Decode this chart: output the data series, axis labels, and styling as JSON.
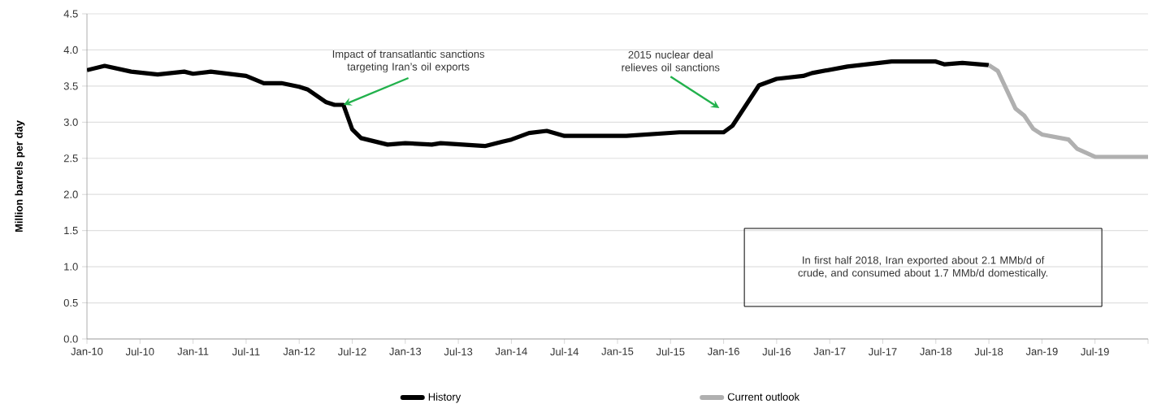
{
  "chart_data": {
    "type": "line",
    "ylabel": "Million barrels per day",
    "xlim": [
      "2010-01",
      "2020-01"
    ],
    "xticks": [
      {
        "value": "2010-01",
        "label": "Jan-10"
      },
      {
        "value": "2010-07",
        "label": "Jul-10"
      },
      {
        "value": "2011-01",
        "label": "Jan-11"
      },
      {
        "value": "2011-07",
        "label": "Jul-11"
      },
      {
        "value": "2012-01",
        "label": "Jan-12"
      },
      {
        "value": "2012-07",
        "label": "Jul-12"
      },
      {
        "value": "2013-01",
        "label": "Jan-13"
      },
      {
        "value": "2013-07",
        "label": "Jul-13"
      },
      {
        "value": "2014-01",
        "label": "Jan-14"
      },
      {
        "value": "2014-07",
        "label": "Jul-14"
      },
      {
        "value": "2015-01",
        "label": "Jan-15"
      },
      {
        "value": "2015-07",
        "label": "Jul-15"
      },
      {
        "value": "2016-01",
        "label": "Jan-16"
      },
      {
        "value": "2016-07",
        "label": "Jul-16"
      },
      {
        "value": "2017-01",
        "label": "Jan-17"
      },
      {
        "value": "2017-07",
        "label": "Jul-17"
      },
      {
        "value": "2018-01",
        "label": "Jan-18"
      },
      {
        "value": "2018-07",
        "label": "Jul-18"
      },
      {
        "value": "2019-01",
        "label": "Jan-19"
      },
      {
        "value": "2019-07",
        "label": "Jul-19"
      },
      {
        "value": "2020-01",
        "label": null
      }
    ],
    "ylim": [
      0,
      4.5
    ],
    "yticks": [
      {
        "value": 0,
        "label": "0.0"
      },
      {
        "value": 0.5,
        "label": "0.5"
      },
      {
        "value": 1,
        "label": "1.0"
      },
      {
        "value": 1.5,
        "label": "1.5"
      },
      {
        "value": 2,
        "label": "2.0"
      },
      {
        "value": 2.5,
        "label": "2.5"
      },
      {
        "value": 3,
        "label": "3.0"
      },
      {
        "value": 3.5,
        "label": "3.5"
      },
      {
        "value": 4,
        "label": "4.0"
      },
      {
        "value": 4.5,
        "label": "4.5"
      }
    ],
    "grid": "y",
    "legend": "bottom",
    "marker": "none",
    "line_style": "solid",
    "series": [
      {
        "name": "History",
        "color": "#000000",
        "x": [
          "2010-01",
          "2010-03",
          "2010-06",
          "2010-09",
          "2010-12",
          "2011-01",
          "2011-03",
          "2011-07",
          "2011-09",
          "2011-11",
          "2012-01",
          "2012-02",
          "2012-04",
          "2012-05",
          "2012-06",
          "2012-07",
          "2012-08",
          "2012-09",
          "2012-11",
          "2013-01",
          "2013-04",
          "2013-05",
          "2013-10",
          "2013-12",
          "2014-01",
          "2014-03",
          "2014-05",
          "2014-07",
          "2015-02",
          "2015-08",
          "2016-01",
          "2016-02",
          "2016-05",
          "2016-07",
          "2016-10",
          "2016-11",
          "2017-03",
          "2017-08",
          "2018-01",
          "2018-02",
          "2018-04",
          "2018-07"
        ],
        "values": [
          3.72,
          3.78,
          3.7,
          3.66,
          3.7,
          3.67,
          3.7,
          3.64,
          3.54,
          3.54,
          3.49,
          3.45,
          3.28,
          3.24,
          3.24,
          2.9,
          2.78,
          2.75,
          2.69,
          2.71,
          2.69,
          2.71,
          2.67,
          2.73,
          2.76,
          2.85,
          2.88,
          2.81,
          2.81,
          2.86,
          2.86,
          2.95,
          3.51,
          3.6,
          3.64,
          3.68,
          3.77,
          3.84,
          3.84,
          3.8,
          3.82,
          3.79
        ]
      },
      {
        "name": "Current outlook",
        "color": "#b0b0b0",
        "x": [
          "2018-07",
          "2018-08",
          "2018-10",
          "2018-11",
          "2018-12",
          "2019-01",
          "2019-04",
          "2019-05",
          "2019-07",
          "2020-01"
        ],
        "values": [
          3.79,
          3.71,
          3.19,
          3.09,
          2.91,
          2.83,
          2.76,
          2.63,
          2.52,
          2.52
        ]
      }
    ],
    "annotations": [
      {
        "text": "Impact of transatlantic sanctions targeting Iran’s oil exports",
        "x": "2012-06",
        "y": 3.24
      },
      "2015 nuclear deal relieves oil sanctions",
      "In first half 2018, Iran exported about 2.1 MMb/d of crude, and consumed about 1.7 MMb/d domestically."
    ]
  }
}
